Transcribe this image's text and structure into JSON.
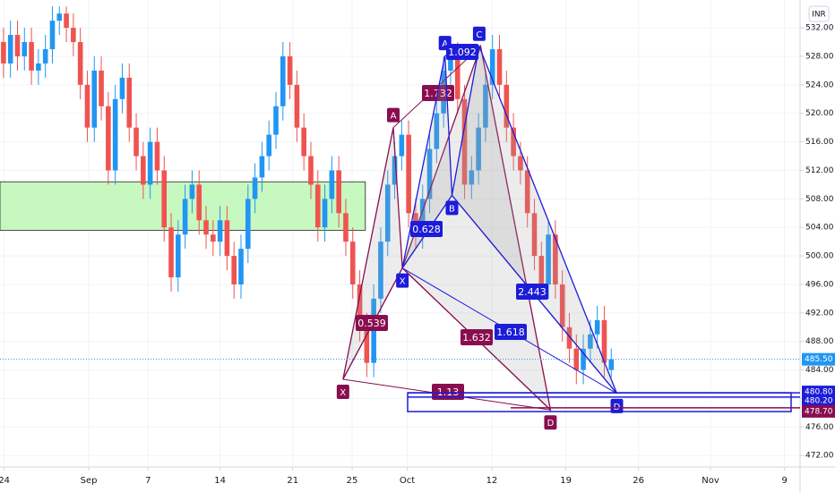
{
  "chart_data": {
    "type": "candlestick",
    "currency": "INR",
    "up_color": "#2196f3",
    "down_color": "#ef5350",
    "xlim": [
      -0.5,
      113
    ],
    "ylim": [
      470.4,
      535.9
    ],
    "xticks": [
      {
        "value": 0.1,
        "label": "24"
      },
      {
        "value": 12.2,
        "label": "Sep"
      },
      {
        "value": 20.7,
        "label": "7"
      },
      {
        "value": 31,
        "label": "14"
      },
      {
        "value": 41.4,
        "label": "21"
      },
      {
        "value": 49.9,
        "label": "25"
      },
      {
        "value": 57.8,
        "label": "Oct"
      },
      {
        "value": 69.9,
        "label": "12"
      },
      {
        "value": 80.5,
        "label": "19"
      },
      {
        "value": 90.9,
        "label": "26"
      },
      {
        "value": 101.2,
        "label": "Nov"
      },
      {
        "value": 111.8,
        "label": "9"
      }
    ],
    "yticks": [
      {
        "value": 472,
        "label": "472.00"
      },
      {
        "value": 476,
        "label": "476.00"
      },
      {
        "value": 480,
        "label": "480.00"
      },
      {
        "value": 484,
        "label": "484.00"
      },
      {
        "value": 488,
        "label": "488.00"
      },
      {
        "value": 492,
        "label": "492.00"
      },
      {
        "value": 496,
        "label": "496.00"
      },
      {
        "value": 500,
        "label": "500.00"
      },
      {
        "value": 504,
        "label": "504.00"
      },
      {
        "value": 508,
        "label": "508.00"
      },
      {
        "value": 512,
        "label": "512.00"
      },
      {
        "value": 516,
        "label": "516.00"
      },
      {
        "value": 520,
        "label": "520.00"
      },
      {
        "value": 524,
        "label": "524.00"
      },
      {
        "value": 528,
        "label": "528.00"
      },
      {
        "value": 532,
        "label": "532.00"
      }
    ],
    "x": [
      0,
      1,
      2,
      3,
      4,
      5,
      6,
      7,
      8,
      9,
      10,
      11,
      12,
      13,
      14,
      15,
      16,
      17,
      18,
      19,
      20,
      21,
      22,
      23,
      24,
      25,
      26,
      27,
      28,
      29,
      30,
      31,
      32,
      33,
      34,
      35,
      36,
      37,
      38,
      39,
      40,
      41,
      42,
      43,
      44,
      45,
      46,
      47,
      48,
      49,
      50,
      51,
      52,
      53,
      54,
      55,
      56,
      57,
      58,
      59,
      60,
      61,
      62,
      63,
      64,
      65,
      66,
      67,
      68,
      69,
      70,
      71,
      72,
      73,
      74,
      75,
      76,
      77,
      78,
      79,
      80,
      81,
      82,
      83,
      84,
      85,
      86,
      87
    ],
    "open": [
      530,
      527,
      531,
      528,
      530,
      526,
      527,
      529,
      533,
      534,
      532,
      530,
      524,
      518,
      526,
      521,
      512,
      522,
      525,
      518,
      514,
      510,
      516,
      512,
      504,
      497,
      503,
      508,
      510,
      505,
      503,
      502,
      505,
      500,
      496,
      501,
      508,
      511,
      514,
      517,
      521,
      528,
      524,
      518,
      514,
      510,
      504,
      508,
      512,
      506,
      502,
      496,
      490,
      485,
      494,
      502,
      510,
      514,
      517,
      506,
      503,
      508,
      515,
      520,
      526,
      528,
      522,
      510,
      512,
      518,
      524,
      529,
      524,
      518,
      514,
      512,
      506,
      500,
      496,
      503,
      496,
      490,
      487,
      484,
      487,
      489,
      491,
      484
    ],
    "high": [
      532,
      533,
      533,
      532,
      532,
      529,
      531,
      535,
      535,
      535,
      534,
      532,
      526,
      528,
      528,
      523,
      524,
      527,
      527,
      520,
      516,
      518,
      518,
      514,
      506,
      505,
      510,
      512,
      512,
      507,
      505,
      507,
      507,
      502,
      503,
      510,
      513,
      516,
      519,
      523,
      530,
      530,
      526,
      520,
      516,
      512,
      510,
      514,
      514,
      508,
      504,
      498,
      492,
      496,
      504,
      512,
      516,
      519,
      519,
      508,
      510,
      517,
      522,
      528,
      530,
      530,
      524,
      514,
      520,
      526,
      531,
      531,
      526,
      520,
      516,
      514,
      508,
      502,
      505,
      505,
      498,
      492,
      489,
      489,
      491,
      493,
      493,
      487
    ],
    "low": [
      525,
      525,
      526,
      526,
      524,
      524,
      525,
      527,
      531,
      530,
      528,
      522,
      516,
      516,
      519,
      510,
      510,
      520,
      516,
      512,
      508,
      508,
      510,
      502,
      495,
      495,
      501,
      506,
      503,
      501,
      500,
      500,
      498,
      494,
      494,
      499,
      506,
      509,
      512,
      515,
      519,
      522,
      516,
      512,
      508,
      502,
      502,
      506,
      504,
      500,
      494,
      488,
      483,
      483,
      492,
      500,
      508,
      512,
      504,
      501,
      501,
      506,
      513,
      518,
      524,
      520,
      508,
      508,
      510,
      516,
      522,
      522,
      516,
      512,
      510,
      504,
      498,
      494,
      494,
      494,
      488,
      485,
      482,
      482,
      485,
      487,
      483,
      483
    ],
    "close": [
      527,
      531,
      528,
      530,
      526,
      527,
      529,
      533,
      534,
      532,
      530,
      524,
      518,
      526,
      521,
      512,
      522,
      525,
      518,
      514,
      510,
      516,
      512,
      504,
      497,
      503,
      508,
      510,
      505,
      503,
      502,
      505,
      500,
      496,
      501,
      508,
      511,
      514,
      517,
      521,
      528,
      524,
      518,
      514,
      510,
      504,
      508,
      512,
      506,
      502,
      496,
      490,
      485,
      494,
      502,
      510,
      514,
      517,
      506,
      503,
      508,
      515,
      520,
      526,
      528,
      522,
      510,
      512,
      518,
      524,
      529,
      524,
      518,
      514,
      512,
      506,
      500,
      496,
      503,
      496,
      490,
      487,
      484,
      487,
      489,
      491,
      485,
      485.5
    ],
    "last_price": {
      "value": 485.5,
      "label": "485.50",
      "color": "#2196f3"
    },
    "price_labels": [
      {
        "value": 480.8,
        "label": "480.80",
        "color": "#1c1cd9"
      },
      {
        "value": 480.2,
        "label": "480.20",
        "color": "#1c1cd9"
      },
      {
        "value": 478.7,
        "label": "478.70",
        "color": "#880e4f"
      }
    ],
    "zone": {
      "xlim": [
        -0.5,
        51.8
      ],
      "ylim": [
        503.6,
        510.4
      ],
      "color": "#b9f6b0"
    },
    "patterns": [
      {
        "color": "#880e4f",
        "points": [
          {
            "label": "X",
            "x": 48.6,
            "y": 482.7
          },
          {
            "label": "A",
            "x": 55.8,
            "y": 518
          },
          {
            "x": 57.1,
            "y": 498.3
          },
          {
            "x": 68.3,
            "y": 529.4
          },
          {
            "label": "D",
            "x": 78.3,
            "y": 478.4
          }
        ],
        "ratios": [
          0.539,
          1.732,
          1.632,
          1.13
        ]
      },
      {
        "color": "#1c1cd9",
        "points": [
          {
            "label": "X",
            "x": 57.1,
            "y": 498.3
          },
          {
            "label": "A",
            "x": 63.2,
            "y": 528.1
          },
          {
            "label": "B",
            "x": 64.2,
            "y": 508.5
          },
          {
            "label": "C",
            "x": 68.1,
            "y": 529.4
          },
          {
            "label": "D",
            "x": 87.8,
            "y": 480.7
          }
        ],
        "ratios": [
          0.628,
          1.092,
          2.443,
          1.618
        ]
      }
    ]
  }
}
